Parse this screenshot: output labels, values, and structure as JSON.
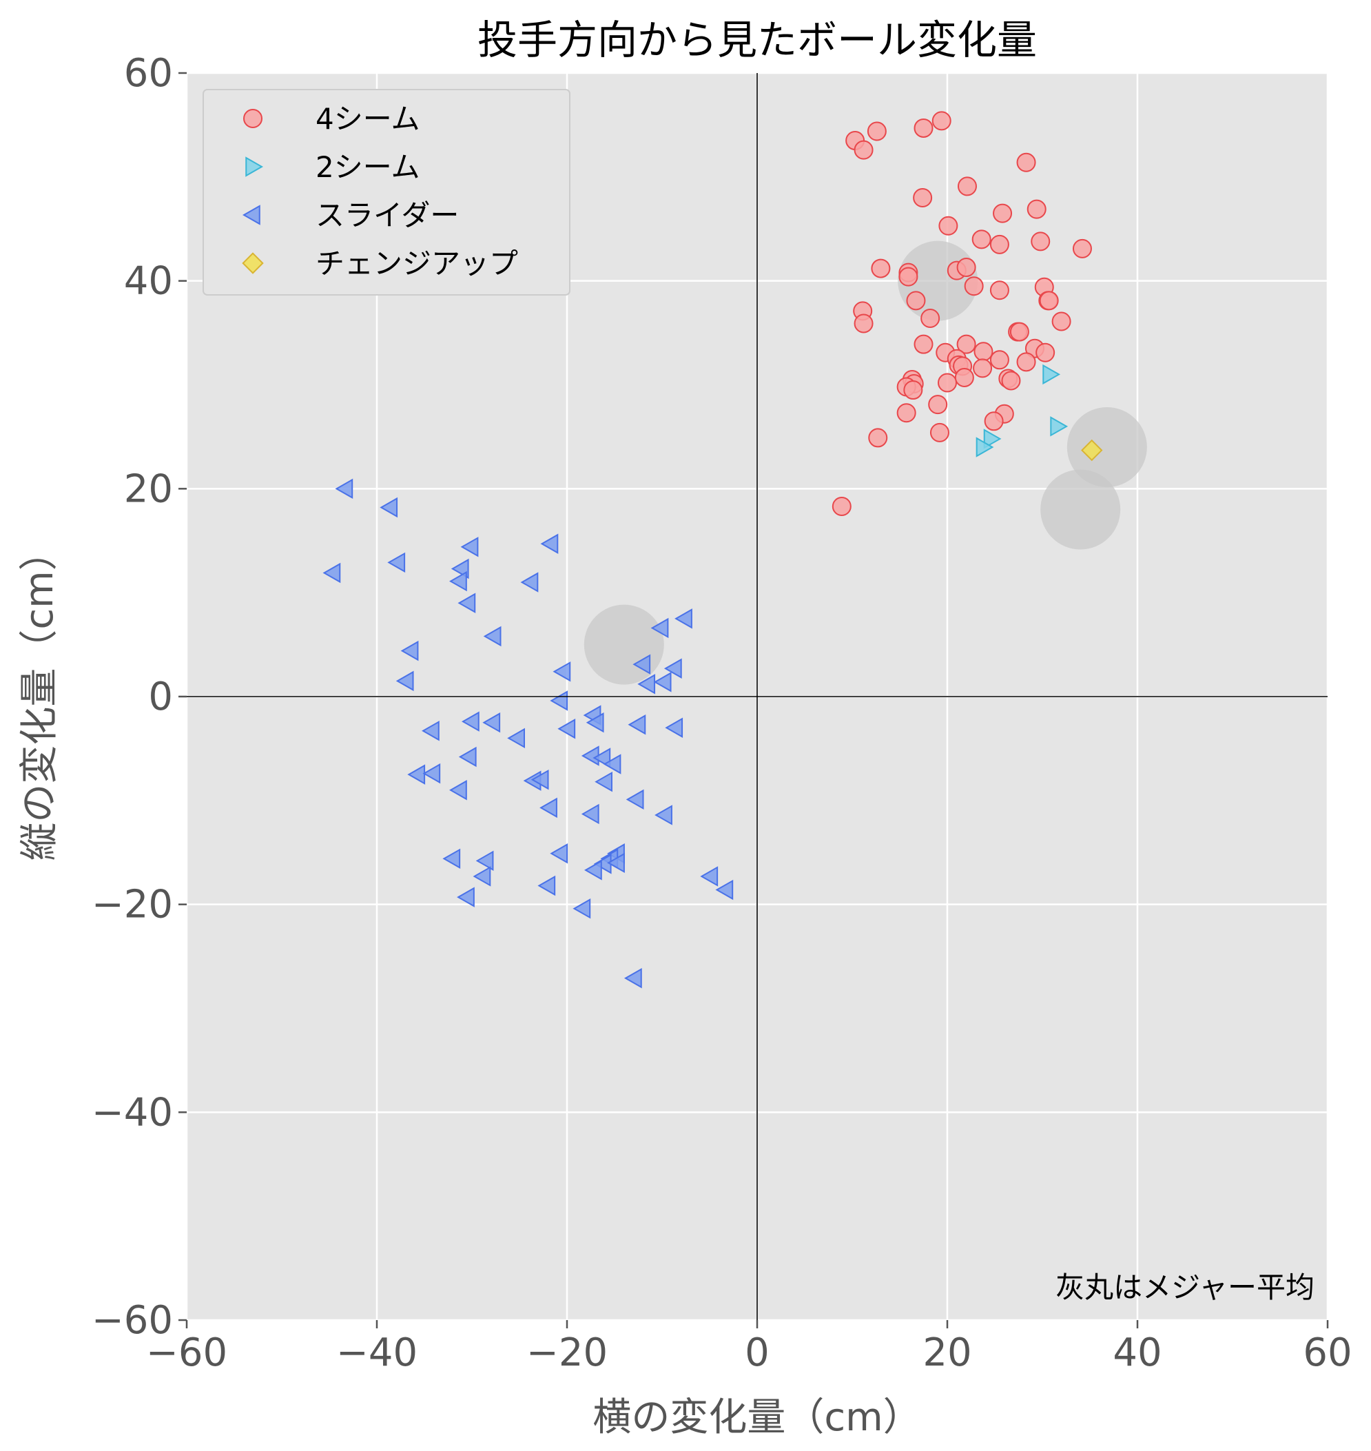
{
  "chart_data": {
    "type": "scatter",
    "title": "投手方向から見たボール変化量",
    "xlabel": "横の変化量（cm）",
    "ylabel": "縦の変化量（cm）",
    "xlim": [
      -60,
      60
    ],
    "ylim": [
      -60,
      60
    ],
    "xticks": [
      -60,
      -40,
      -20,
      0,
      20,
      40,
      60
    ],
    "yticks": [
      -60,
      -40,
      -20,
      0,
      20,
      40,
      60
    ],
    "grid": true,
    "legend_position": "top-left",
    "annotation": "灰丸はメジャー平均",
    "colors": {
      "background": "#e5e5e5",
      "grid": "#ffffff",
      "zero_lines": "#000000",
      "tick_text": "#555555",
      "average_circle": "#c8c8c8"
    },
    "series": [
      {
        "name": "4シーム",
        "marker": "circle",
        "fill": "#f9a3a3",
        "stroke": "#e8474b",
        "points": [
          [
            10.3,
            53.5
          ],
          [
            12.6,
            54.4
          ],
          [
            11.2,
            52.6
          ],
          [
            17.5,
            54.7
          ],
          [
            19.4,
            55.4
          ],
          [
            28.3,
            51.4
          ],
          [
            17.4,
            48.0
          ],
          [
            22.1,
            49.1
          ],
          [
            29.4,
            46.9
          ],
          [
            25.8,
            46.5
          ],
          [
            20.1,
            45.3
          ],
          [
            23.6,
            44.0
          ],
          [
            25.5,
            43.5
          ],
          [
            29.8,
            43.8
          ],
          [
            34.2,
            43.1
          ],
          [
            13.0,
            41.2
          ],
          [
            15.9,
            40.8
          ],
          [
            15.9,
            40.4
          ],
          [
            21.0,
            41.0
          ],
          [
            22.0,
            41.3
          ],
          [
            22.8,
            39.5
          ],
          [
            25.5,
            39.1
          ],
          [
            30.2,
            39.4
          ],
          [
            30.6,
            38.1
          ],
          [
            30.7,
            38.1
          ],
          [
            16.7,
            38.1
          ],
          [
            11.1,
            37.1
          ],
          [
            11.2,
            35.9
          ],
          [
            18.2,
            36.4
          ],
          [
            32.0,
            36.1
          ],
          [
            27.4,
            35.1
          ],
          [
            27.6,
            35.1
          ],
          [
            17.5,
            33.9
          ],
          [
            22.0,
            33.9
          ],
          [
            19.8,
            33.1
          ],
          [
            23.8,
            33.2
          ],
          [
            29.2,
            33.5
          ],
          [
            30.3,
            33.1
          ],
          [
            21.0,
            32.5
          ],
          [
            25.5,
            32.4
          ],
          [
            28.3,
            32.2
          ],
          [
            21.2,
            31.9
          ],
          [
            21.6,
            31.8
          ],
          [
            23.7,
            31.6
          ],
          [
            21.8,
            30.7
          ],
          [
            26.4,
            30.6
          ],
          [
            26.7,
            30.4
          ],
          [
            16.3,
            30.5
          ],
          [
            16.5,
            30.1
          ],
          [
            15.7,
            29.8
          ],
          [
            16.4,
            29.5
          ],
          [
            20.0,
            30.2
          ],
          [
            19.0,
            28.1
          ],
          [
            15.7,
            27.3
          ],
          [
            26.0,
            27.2
          ],
          [
            24.9,
            26.5
          ],
          [
            19.2,
            25.4
          ],
          [
            12.7,
            24.9
          ],
          [
            8.9,
            18.3
          ]
        ]
      },
      {
        "name": "2シーム",
        "marker": "triangle-right",
        "fill": "#7fd4ea",
        "stroke": "#3ab6d6",
        "points": [
          [
            30.8,
            31.0
          ],
          [
            31.6,
            26.0
          ],
          [
            24.6,
            24.8
          ],
          [
            23.8,
            24.0
          ]
        ]
      },
      {
        "name": "スライダー",
        "marker": "triangle-left",
        "fill": "#7b9df0",
        "stroke": "#4a72e8",
        "points": [
          [
            -43.3,
            20.0
          ],
          [
            -38.6,
            18.2
          ],
          [
            -44.6,
            11.9
          ],
          [
            -37.8,
            12.9
          ],
          [
            -30.1,
            14.4
          ],
          [
            -21.7,
            14.7
          ],
          [
            -31.1,
            12.3
          ],
          [
            -31.3,
            11.1
          ],
          [
            -23.8,
            11.0
          ],
          [
            -30.4,
            9.0
          ],
          [
            -27.7,
            5.8
          ],
          [
            -36.4,
            4.4
          ],
          [
            -36.9,
            1.5
          ],
          [
            -10.1,
            6.6
          ],
          [
            -7.6,
            7.5
          ],
          [
            -12.0,
            3.1
          ],
          [
            -20.4,
            2.4
          ],
          [
            -8.7,
            2.7
          ],
          [
            -9.8,
            1.4
          ],
          [
            -11.5,
            1.2
          ],
          [
            -20.7,
            -0.4
          ],
          [
            -34.2,
            -3.3
          ],
          [
            -30.0,
            -2.4
          ],
          [
            -27.8,
            -2.5
          ],
          [
            -17.2,
            -1.8
          ],
          [
            -16.9,
            -2.5
          ],
          [
            -12.5,
            -2.7
          ],
          [
            -8.6,
            -3.0
          ],
          [
            -19.9,
            -3.1
          ],
          [
            -25.2,
            -4.0
          ],
          [
            -30.3,
            -5.8
          ],
          [
            -17.4,
            -5.7
          ],
          [
            -16.2,
            -5.9
          ],
          [
            -15.1,
            -6.5
          ],
          [
            -35.7,
            -7.5
          ],
          [
            -34.1,
            -7.4
          ],
          [
            -23.5,
            -8.1
          ],
          [
            -22.7,
            -8.0
          ],
          [
            -16.0,
            -8.2
          ],
          [
            -31.3,
            -9.0
          ],
          [
            -12.7,
            -9.9
          ],
          [
            -21.8,
            -10.7
          ],
          [
            -17.4,
            -11.3
          ],
          [
            -9.7,
            -11.4
          ],
          [
            -20.7,
            -15.1
          ],
          [
            -32.0,
            -15.6
          ],
          [
            -28.5,
            -15.8
          ],
          [
            -14.7,
            -15.1
          ],
          [
            -15.4,
            -15.6
          ],
          [
            -16.1,
            -16.1
          ],
          [
            -14.7,
            -16.0
          ],
          [
            -17.1,
            -16.7
          ],
          [
            -28.8,
            -17.3
          ],
          [
            -4.9,
            -17.3
          ],
          [
            -3.3,
            -18.6
          ],
          [
            -22.0,
            -18.2
          ],
          [
            -30.5,
            -19.3
          ],
          [
            -18.3,
            -20.4
          ],
          [
            -12.9,
            -27.1
          ]
        ]
      },
      {
        "name": "チェンジアップ",
        "marker": "diamond",
        "fill": "#f2e052",
        "stroke": "#d9b433",
        "points": [
          [
            35.2,
            23.7
          ]
        ]
      }
    ],
    "averages": [
      [
        19.0,
        40.0
      ],
      [
        36.8,
        24.0
      ],
      [
        34.0,
        18.0
      ],
      [
        -14.0,
        5.0
      ]
    ]
  }
}
